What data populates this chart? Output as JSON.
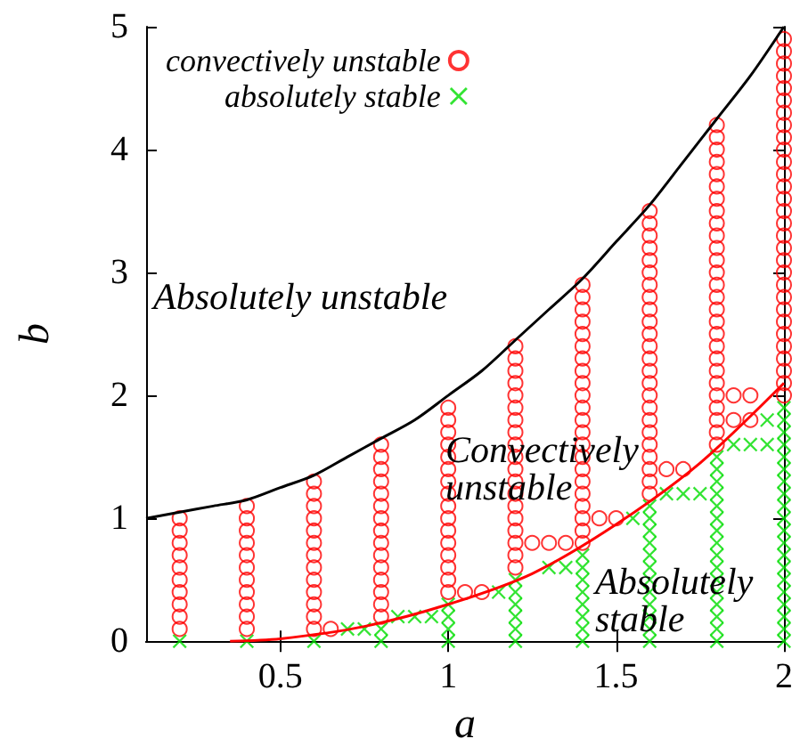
{
  "chart_data": {
    "type": "scatter",
    "xlabel": "a",
    "ylabel": "b",
    "xlim": [
      0.1,
      2
    ],
    "xticks": [
      0.5,
      1,
      1.5,
      2
    ],
    "ylim": [
      0,
      5
    ],
    "yticks": [
      0,
      1,
      2,
      3,
      4,
      5
    ],
    "grid": false,
    "legend": "top left",
    "annotations": [
      "Absolutely unstable",
      "Convectively\nunstable",
      "Absolutely\nstable"
    ],
    "series": [
      {
        "name": "convectively unstable",
        "marker": "circle",
        "color": "#ff0000",
        "x": [
          0.2,
          0.2,
          0.2,
          0.2,
          0.2,
          0.2,
          0.2,
          0.2,
          0.2,
          0.2,
          0.4,
          0.4,
          0.4,
          0.4,
          0.4,
          0.4,
          0.4,
          0.4,
          0.4,
          0.4,
          0.4,
          0.6,
          0.6,
          0.6,
          0.6,
          0.6,
          0.6,
          0.6,
          0.6,
          0.6,
          0.6,
          0.6,
          0.6,
          0.6,
          0.8,
          0.8,
          0.8,
          0.8,
          0.8,
          0.8,
          0.8,
          0.8,
          0.8,
          0.8,
          0.8,
          0.8,
          0.8,
          0.8,
          0.8,
          1,
          1,
          1,
          1,
          1,
          1,
          1,
          1,
          1,
          1,
          1,
          1,
          1,
          1,
          1,
          1,
          1.2,
          1.2,
          1.2,
          1.2,
          1.2,
          1.2,
          1.2,
          1.2,
          1.2,
          1.2,
          1.2,
          1.2,
          1.2,
          1.2,
          1.2,
          1.2,
          1.2,
          1.2,
          1.2,
          1.4,
          1.4,
          1.4,
          1.4,
          1.4,
          1.4,
          1.4,
          1.4,
          1.4,
          1.4,
          1.4,
          1.4,
          1.4,
          1.4,
          1.4,
          1.4,
          1.4,
          1.4,
          1.4,
          1.4,
          1.4,
          1.4,
          1.6,
          1.6,
          1.6,
          1.6,
          1.6,
          1.6,
          1.6,
          1.6,
          1.6,
          1.6,
          1.6,
          1.6,
          1.6,
          1.6,
          1.6,
          1.6,
          1.6,
          1.6,
          1.6,
          1.6,
          1.6,
          1.6,
          1.6,
          1.6,
          1.8,
          1.8,
          1.8,
          1.8,
          1.8,
          1.8,
          1.8,
          1.8,
          1.8,
          1.8,
          1.8,
          1.8,
          1.8,
          1.8,
          1.8,
          1.8,
          1.8,
          1.8,
          1.8,
          1.8,
          1.8,
          1.8,
          1.8,
          1.8,
          1.8,
          1.8,
          1.8,
          2,
          2,
          2,
          2,
          2,
          2,
          2,
          2,
          2,
          2,
          2,
          2,
          2,
          2,
          2,
          2,
          2,
          2,
          2,
          2,
          2,
          2,
          2,
          2,
          2,
          2,
          2,
          2,
          2,
          2,
          0.65,
          1.05,
          1.1,
          1.25,
          1.3,
          1.35,
          1.45,
          1.5,
          1.65,
          1.7,
          1.85,
          1.9,
          1.85,
          1.9
        ],
        "values": [
          0.1,
          0.2,
          0.3,
          0.4,
          0.5,
          0.6,
          0.7,
          0.8,
          0.9,
          1,
          0.1,
          0.2,
          0.3,
          0.4,
          0.5,
          0.6,
          0.7,
          0.8,
          0.9,
          1,
          1.1,
          0.1,
          0.2,
          0.3,
          0.4,
          0.5,
          0.6,
          0.7,
          0.8,
          0.9,
          1,
          1.1,
          1.2,
          1.3,
          0.2,
          0.3,
          0.4,
          0.5,
          0.6,
          0.7,
          0.8,
          0.9,
          1,
          1.1,
          1.2,
          1.3,
          1.4,
          1.5,
          1.6,
          0.4,
          0.5,
          0.6,
          0.7,
          0.8,
          0.9,
          1,
          1.1,
          1.2,
          1.3,
          1.4,
          1.5,
          1.6,
          1.7,
          1.8,
          1.9,
          0.6,
          0.7,
          0.8,
          0.9,
          1,
          1.1,
          1.2,
          1.3,
          1.4,
          1.5,
          1.6,
          1.7,
          1.8,
          1.9,
          2,
          2.1,
          2.2,
          2.3,
          2.4,
          0.8,
          0.9,
          1,
          1.1,
          1.2,
          1.3,
          1.4,
          1.5,
          1.6,
          1.7,
          1.8,
          1.9,
          2,
          2.1,
          2.2,
          2.3,
          2.4,
          2.5,
          2.6,
          2.7,
          2.8,
          2.9,
          1.2,
          1.3,
          1.4,
          1.5,
          1.6,
          1.7,
          1.8,
          1.9,
          2,
          2.1,
          2.2,
          2.3,
          2.4,
          2.5,
          2.6,
          2.7,
          2.8,
          2.9,
          3,
          3.1,
          3.2,
          3.3,
          3.4,
          3.5,
          1.6,
          1.7,
          1.8,
          1.9,
          2,
          2.1,
          2.2,
          2.3,
          2.4,
          2.5,
          2.6,
          2.7,
          2.8,
          2.9,
          3,
          3.1,
          3.2,
          3.3,
          3.4,
          3.5,
          3.6,
          3.7,
          3.8,
          3.9,
          4,
          4.1,
          4.2,
          2,
          2.1,
          2.2,
          2.3,
          2.4,
          2.5,
          2.6,
          2.7,
          2.8,
          2.9,
          3,
          3.1,
          3.2,
          3.3,
          3.4,
          3.5,
          3.6,
          3.7,
          3.8,
          3.9,
          4,
          4.1,
          4.2,
          4.3,
          4.4,
          4.5,
          4.6,
          4.7,
          4.8,
          4.9,
          0.1,
          0.4,
          0.4,
          0.8,
          0.8,
          0.8,
          1,
          1,
          1.4,
          1.4,
          2,
          2,
          1.8,
          1.8
        ]
      },
      {
        "name": "absolutely stable",
        "marker": "cross",
        "color": "#00dd00",
        "x": [
          0.2,
          0.4,
          0.6,
          0.7,
          0.75,
          0.8,
          0.8,
          0.85,
          0.9,
          0.95,
          1,
          1,
          1,
          1,
          1.15,
          1.2,
          1.2,
          1.2,
          1.2,
          1.2,
          1.2,
          1.3,
          1.35,
          1.4,
          1.4,
          1.4,
          1.4,
          1.4,
          1.4,
          1.4,
          1.4,
          1.55,
          1.6,
          1.6,
          1.6,
          1.6,
          1.6,
          1.6,
          1.6,
          1.6,
          1.6,
          1.6,
          1.6,
          1.6,
          1.65,
          1.7,
          1.75,
          1.8,
          1.8,
          1.8,
          1.8,
          1.8,
          1.8,
          1.8,
          1.8,
          1.8,
          1.8,
          1.8,
          1.8,
          1.8,
          1.8,
          1.8,
          1.8,
          1.85,
          1.9,
          1.95,
          1.95,
          2,
          2,
          2,
          2,
          2,
          2,
          2,
          2,
          2,
          2,
          2,
          2,
          2,
          2,
          2,
          2,
          2,
          2,
          2,
          2
        ],
        "values": [
          0,
          0,
          0,
          0.1,
          0.1,
          0,
          0.1,
          0.2,
          0.2,
          0.2,
          0,
          0.1,
          0.2,
          0.3,
          0.4,
          0,
          0.1,
          0.2,
          0.3,
          0.4,
          0.5,
          0.6,
          0.6,
          0,
          0.1,
          0.2,
          0.3,
          0.4,
          0.5,
          0.6,
          0.7,
          1,
          0,
          0.1,
          0.2,
          0.3,
          0.4,
          0.5,
          0.6,
          0.7,
          0.8,
          0.9,
          1,
          1.1,
          1.2,
          1.2,
          1.2,
          0,
          0.1,
          0.2,
          0.3,
          0.4,
          0.5,
          0.6,
          0.7,
          0.8,
          0.9,
          1,
          1.1,
          1.2,
          1.3,
          1.4,
          1.5,
          1.6,
          1.6,
          1.6,
          1.8,
          0,
          0.1,
          0.2,
          0.3,
          0.4,
          0.5,
          0.6,
          0.7,
          0.8,
          0.9,
          1,
          1.1,
          1.2,
          1.3,
          1.4,
          1.5,
          1.6,
          1.7,
          1.8,
          1.9
        ]
      },
      {
        "type": "line",
        "marker": "none",
        "color": "#000000",
        "x": [
          0.1,
          0.2,
          0.3,
          0.4,
          0.5,
          0.6,
          0.7,
          0.8,
          0.9,
          1,
          1.1,
          1.2,
          1.3,
          1.4,
          1.5,
          1.6,
          1.7,
          1.8,
          1.9,
          2
        ],
        "values": [
          1,
          1.05,
          1.1,
          1.15,
          1.25,
          1.35,
          1.5,
          1.65,
          1.8,
          2,
          2.2,
          2.45,
          2.7,
          2.95,
          3.25,
          3.55,
          3.9,
          4.25,
          4.6,
          5
        ]
      },
      {
        "type": "line",
        "marker": "none",
        "color": "#ff0000",
        "x": [
          0.35,
          0.5,
          0.75,
          1,
          1.25,
          1.5,
          1.75,
          2
        ],
        "values": [
          0,
          0.02,
          0.12,
          0.3,
          0.55,
          0.95,
          1.45,
          2.1
        ]
      }
    ]
  }
}
